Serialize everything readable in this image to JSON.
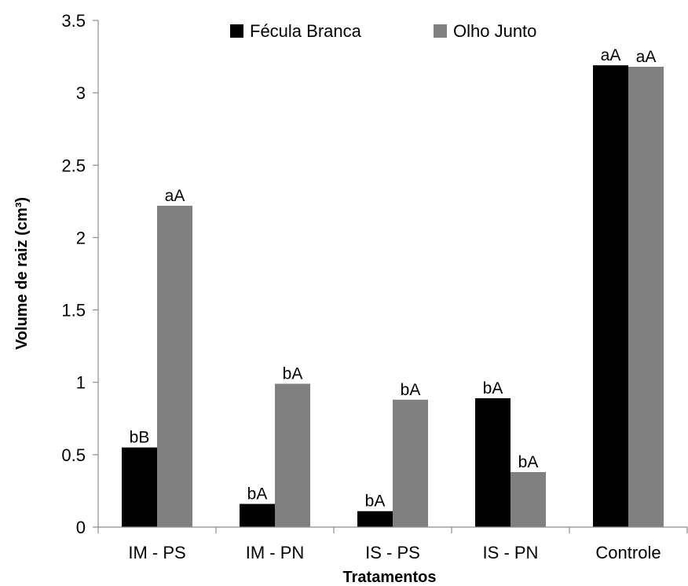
{
  "chart_data": {
    "type": "bar",
    "title": "",
    "xlabel": "Tratamentos",
    "ylabel": "Volume de raiz (cm³)",
    "ylim": [
      0,
      3.5
    ],
    "yticks": [
      0,
      0.5,
      1,
      1.5,
      2,
      2.5,
      3,
      3.5
    ],
    "ytick_labels": [
      "0",
      "0.5",
      "1",
      "1.5",
      "2",
      "2.5",
      "3",
      "3.5"
    ],
    "categories": [
      "IM - PS",
      "IM - PN",
      "IS - PS",
      "IS - PN",
      "Controle"
    ],
    "series": [
      {
        "name": "Fécula Branca",
        "color": "#000000",
        "values": [
          0.55,
          0.16,
          0.11,
          0.89,
          3.19
        ],
        "labels": [
          "bB",
          "bA",
          "bA",
          "bA",
          "aA"
        ]
      },
      {
        "name": "Olho Junto",
        "color": "#808080",
        "values": [
          2.22,
          0.99,
          0.88,
          0.38,
          3.18
        ],
        "labels": [
          "aA",
          "bA",
          "bA",
          "bA",
          "aA"
        ]
      }
    ],
    "grid": false,
    "legend_position": "top-center"
  }
}
